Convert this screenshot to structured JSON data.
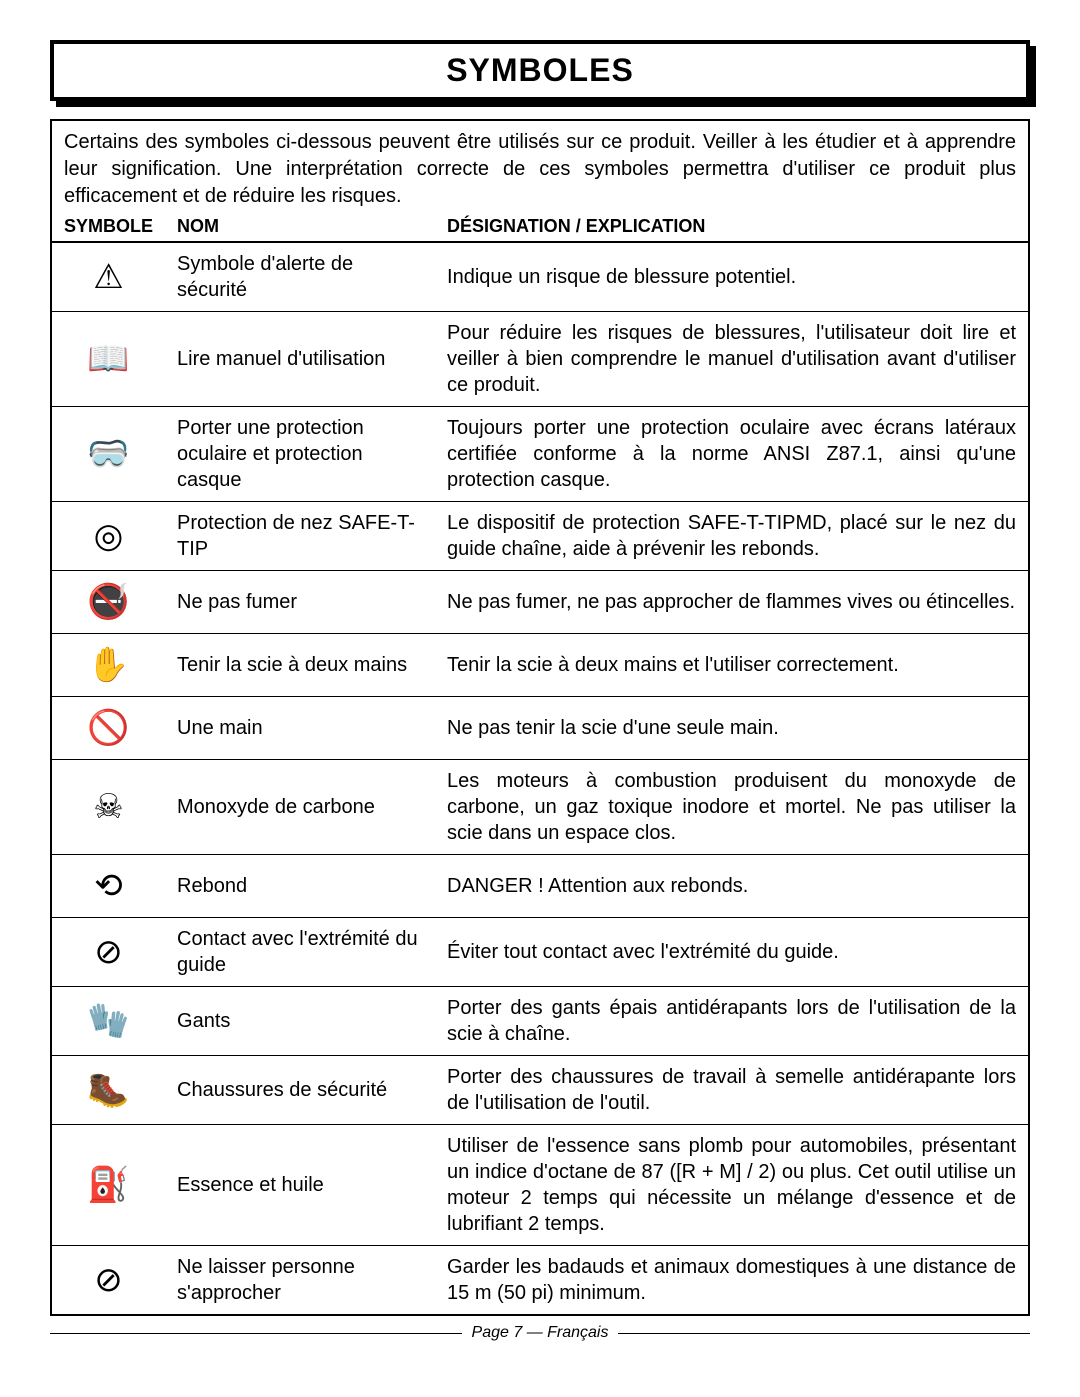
{
  "title": "SYMBOLES",
  "intro": "Certains des symboles ci-dessous peuvent être utilisés sur ce produit. Veiller à les étudier et à apprendre leur signification. Une interprétation correcte de ces symboles permettra d'utiliser ce produit plus efficacement et de réduire les risques.",
  "headers": {
    "symbole": "SYMBOLE",
    "nom": "NOM",
    "desc": "DÉSIGNATION / EXPLICATION"
  },
  "rows": [
    {
      "glyph": "⚠",
      "icon_name": "alert-icon",
      "nom": "Symbole d'alerte de sécurité",
      "desc": "Indique un risque de blessure potentiel."
    },
    {
      "glyph": "📖",
      "icon_name": "read-manual-icon",
      "nom": "Lire manuel d'utilisation",
      "desc": "Pour réduire les risques de blessures, l'utilisateur doit lire et veiller à bien comprendre le manuel d'utilisation avant d'utiliser ce produit."
    },
    {
      "glyph": "🥽",
      "icon_name": "eye-ear-protection-icon",
      "nom": "Porter une protection oculaire et protection casque",
      "desc": "Toujours porter une protection oculaire avec écrans latéraux certifiée conforme à la norme ANSI Z87.1, ainsi qu'une protection casque."
    },
    {
      "glyph": "◎",
      "icon_name": "safe-t-tip-icon",
      "nom": "Protection de nez SAFE-T-TIP",
      "desc": "Le dispositif de protection SAFE-T-TIPMD, placé sur le nez du guide chaîne, aide à prévenir les rebonds."
    },
    {
      "glyph": "🚭",
      "icon_name": "no-smoking-icon",
      "nom": "Ne pas fumer",
      "desc": "Ne pas fumer, ne pas approcher de flammes vives ou étincelles."
    },
    {
      "glyph": "✋",
      "icon_name": "two-hands-icon",
      "nom": "Tenir la scie à deux mains",
      "desc": "Tenir la scie à deux mains et l'utiliser correctement."
    },
    {
      "glyph": "🚫",
      "icon_name": "no-one-hand-icon",
      "nom": "Une main",
      "desc": "Ne pas tenir la scie d'une seule main."
    },
    {
      "glyph": "☠",
      "icon_name": "carbon-monoxide-icon",
      "nom": "Monoxyde de carbone",
      "desc": "Les moteurs à combustion produisent du monoxyde de carbone, un gaz toxique inodore et mortel. Ne pas utiliser la scie dans un espace clos."
    },
    {
      "glyph": "⟲",
      "icon_name": "kickback-icon",
      "nom": "Rebond",
      "desc": "DANGER ! Attention aux rebonds."
    },
    {
      "glyph": "⊘",
      "icon_name": "bar-tip-contact-icon",
      "nom": "Contact avec l'extrémité du guide",
      "desc": "Éviter tout contact avec l'extrémité du guide."
    },
    {
      "glyph": "🧤",
      "icon_name": "gloves-icon",
      "nom": "Gants",
      "desc": "Porter des gants épais antidérapants lors de l'utilisation de la scie à chaîne."
    },
    {
      "glyph": "🥾",
      "icon_name": "safety-boots-icon",
      "nom": "Chaussures de sécurité",
      "desc": "Porter des chaussures de travail à semelle antidérapante lors de l'utilisation de l'outil."
    },
    {
      "glyph": "⛽",
      "icon_name": "fuel-oil-icon",
      "nom": "Essence et huile",
      "desc": "Utiliser de l'essence sans plomb pour automobiles, présentant un indice d'octane de 87 ([R + M] / 2) ou plus. Cet outil utilise un moteur 2 temps qui nécessite un mélange d'essence et de lubrifiant 2 temps."
    },
    {
      "glyph": "⊘",
      "icon_name": "bystanders-icon",
      "nom": "Ne laisser personne s'approcher",
      "desc": "Garder les badauds et animaux domestiques à une distance de 15 m (50 pi) minimum."
    }
  ],
  "footer": "Page 7  — Français"
}
